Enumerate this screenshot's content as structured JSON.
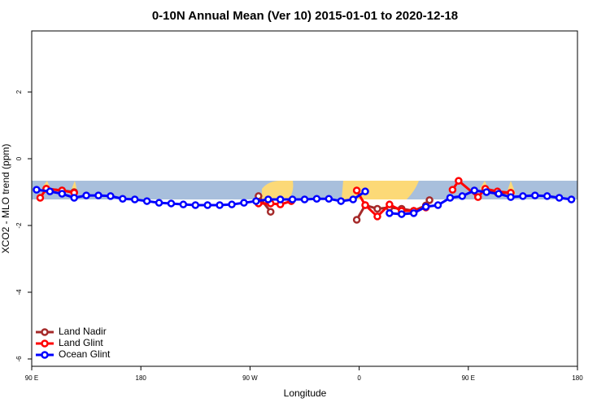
{
  "chart_data": {
    "type": "line",
    "title": "0-10N Annual Mean (Ver 10)   2015-01-01 to 2020-12-18",
    "x_label": "Longitude",
    "y_label": "XCO2 - MLO trend (ppm)",
    "xlim": [
      90,
      540
    ],
    "xticks": [
      {
        "value": 90,
        "label": "90 E"
      },
      {
        "value": 180,
        "label": "180"
      },
      {
        "value": 270,
        "label": "90 W"
      },
      {
        "value": 360,
        "label": "0"
      },
      {
        "value": 450,
        "label": "90 E"
      },
      {
        "value": 540,
        "label": "180"
      }
    ],
    "ylim": [
      -6.22,
      3.83
    ],
    "yticks": [
      2,
      0,
      -2,
      -4,
      -6
    ],
    "legend": "bottom-left",
    "series": [
      {
        "name": "Land Nadir",
        "color": "#a52a2a",
        "x": [
          102,
          115,
          125,
          null,
          277,
          287,
          null,
          358,
          365,
          375,
          385,
          395,
          405,
          415,
          418,
          null,
          464,
          474,
          485
        ],
        "values": [
          -0.9,
          -0.95,
          -1.0,
          null,
          -1.12,
          -1.59,
          null,
          -1.83,
          -1.39,
          -1.5,
          -1.46,
          -1.5,
          -1.56,
          -1.4,
          -1.24,
          null,
          -0.92,
          -1.02,
          -1.02
        ]
      },
      {
        "name": "Land Glint",
        "color": "#ff0000",
        "x": [
          97,
          102,
          115,
          125,
          null,
          277,
          287,
          295,
          304,
          null,
          358,
          365,
          375,
          385,
          395,
          405,
          415,
          null,
          437,
          442,
          458,
          464,
          474,
          485
        ],
        "values": [
          -1.17,
          -0.9,
          -0.95,
          -1.02,
          null,
          -1.34,
          -1.34,
          -1.37,
          -1.27,
          null,
          -0.95,
          -1.39,
          -1.73,
          -1.37,
          -1.56,
          -1.56,
          -1.46,
          null,
          -0.93,
          -0.66,
          -1.15,
          -0.9,
          -0.98,
          -1.02
        ]
      },
      {
        "name": "Ocean Glint",
        "color": "#0000ff",
        "x": [
          94,
          105,
          115,
          125,
          135,
          145,
          155,
          165,
          175,
          185,
          195,
          205,
          215,
          225,
          235,
          245,
          255,
          265,
          275,
          285,
          295,
          305,
          315,
          325,
          335,
          345,
          355,
          365,
          375,
          385,
          395,
          405,
          415,
          425,
          435,
          445,
          455,
          465,
          475,
          485,
          495,
          505,
          515,
          525,
          535
        ],
        "values": [
          -0.93,
          -0.98,
          -1.05,
          -1.17,
          -1.1,
          -1.1,
          -1.12,
          -1.2,
          -1.22,
          -1.27,
          -1.32,
          -1.34,
          -1.37,
          -1.39,
          -1.39,
          -1.39,
          -1.37,
          -1.32,
          -1.27,
          -1.22,
          -1.22,
          -1.22,
          -1.22,
          -1.2,
          -1.2,
          -1.27,
          -1.22,
          -0.98,
          null,
          -1.63,
          -1.66,
          -1.63,
          -1.44,
          -1.39,
          -1.17,
          -1.12,
          -0.95,
          -1.0,
          -1.05,
          -1.15,
          -1.12,
          -1.1,
          -1.12,
          -1.17,
          -1.22
        ]
      }
    ]
  }
}
